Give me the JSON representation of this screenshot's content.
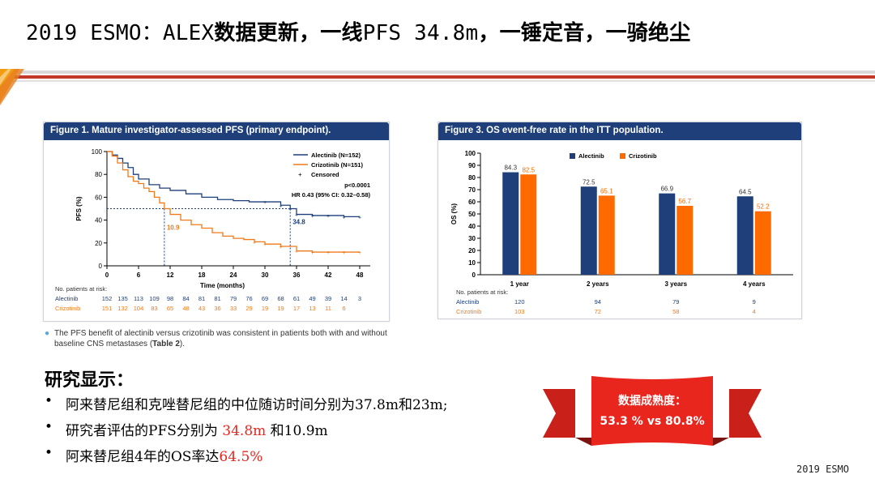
{
  "title": {
    "prefix": "2019 ESMO：ALEX",
    "bold1": "数据更新，一线",
    "mid": "PFS 34.8m",
    "bold2": "，一锤定音，一骑绝尘"
  },
  "figure1": {
    "heading": "Figure 1. Mature investigator-assessed PFS (primary endpoint).",
    "chart_data": {
      "type": "line",
      "xlabel": "Time (months)",
      "ylabel": "PFS (%)",
      "xlim": [
        0,
        50
      ],
      "ylim": [
        0,
        100
      ],
      "xticks": [
        0,
        6,
        12,
        18,
        24,
        30,
        36,
        42,
        48
      ],
      "yticks": [
        0,
        20,
        40,
        60,
        80,
        100
      ],
      "legend": [
        "Alectinib (N=152)",
        "Crizotinib (N=151)",
        "Censored"
      ],
      "stats": [
        "p<0.0001",
        "HR 0.43 (95% CI: 0.32–0.58)"
      ],
      "annotations": [
        "10.9",
        "34.8"
      ],
      "series": [
        {
          "name": "Alectinib (N=152)",
          "color": "#1f3f7a",
          "x": [
            0,
            1,
            2,
            3,
            4,
            5,
            6,
            8,
            10,
            12,
            15,
            18,
            21,
            24,
            27,
            30,
            33,
            34.8,
            36,
            39,
            42,
            45,
            48
          ],
          "y": [
            100,
            97,
            94,
            90,
            86,
            80,
            76,
            71,
            68,
            66,
            63,
            60,
            58,
            57,
            56,
            56,
            53,
            50,
            45,
            44,
            44,
            43,
            43
          ]
        },
        {
          "name": "Crizotinib (N=151)",
          "color": "#f07a1a",
          "x": [
            0,
            1,
            2,
            3,
            4,
            5,
            6,
            7,
            8,
            9,
            10,
            10.9,
            12,
            14,
            16,
            18,
            20,
            22,
            24,
            26,
            28,
            30,
            33,
            36,
            39,
            42,
            45,
            48
          ],
          "y": [
            100,
            96,
            90,
            84,
            78,
            74,
            72,
            68,
            65,
            60,
            55,
            50,
            45,
            40,
            36,
            33,
            29,
            26,
            24,
            23,
            21,
            19,
            17,
            13,
            12,
            12,
            12,
            12
          ]
        }
      ]
    },
    "risk": {
      "label": "No. patients at risk:",
      "alectinib_name": "Alectinib",
      "crizotinib_name": "Crizotinib",
      "alectinib": [
        "152",
        "135",
        "113",
        "109",
        "98",
        "84",
        "81",
        "81",
        "79",
        "76",
        "69",
        "68",
        "61",
        "49",
        "39",
        "14",
        "3"
      ],
      "crizotinib": [
        "151",
        "132",
        "104",
        "83",
        "65",
        "48",
        "43",
        "36",
        "33",
        "29",
        "19",
        "19",
        "17",
        "13",
        "11",
        "6",
        ""
      ]
    }
  },
  "figure3": {
    "heading": "Figure 3. OS event-free rate in the ITT population.",
    "chart_data": {
      "type": "bar",
      "ylabel": "OS (%)",
      "ylim": [
        0,
        100
      ],
      "yticks": [
        0,
        10,
        20,
        30,
        40,
        50,
        60,
        70,
        80,
        90,
        100
      ],
      "categories": [
        "1 year",
        "2 years",
        "3 years",
        "4 years"
      ],
      "series": [
        {
          "name": "Alectinib",
          "color": "#1f3f7a",
          "values": [
            84.3,
            72.5,
            66.9,
            64.5
          ]
        },
        {
          "name": "Crizotinib",
          "color": "#ff6a00",
          "values": [
            82.5,
            65.1,
            56.7,
            52.2
          ]
        }
      ]
    },
    "risk": {
      "label": "No. patients at risk:",
      "alectinib_name": "Alectinib",
      "crizotinib_name": "Crizotinib",
      "alectinib": [
        "120",
        "94",
        "79",
        "9"
      ],
      "crizotinib": [
        "103",
        "72",
        "58",
        "4"
      ]
    }
  },
  "note": {
    "text1": "The PFS benefit of alectinib versus crizotinib was consistent in patients both with and without baseline CNS metastases (",
    "bold": "Table 2",
    "text2": ")."
  },
  "findings": {
    "heading": "研究显示：",
    "b1": "阿来替尼组和克唑替尼组的中位随访时间分别为37.8m和23m;",
    "b2_pre": "研究者评估的PFS分别为 ",
    "b2_red": "34.8m",
    "b2_post": " 和10.9m",
    "b3_pre": "阿来替尼组4年的OS率达",
    "b3_red": "64.5%"
  },
  "banner": {
    "line1": "数据成熟度：",
    "line2": "53.3 % vs 80.8%"
  },
  "footer": "2019 ESMO",
  "colors": {
    "navy": "#1f3f7a",
    "orange": "#f07a1a",
    "red": "#e8261e"
  }
}
